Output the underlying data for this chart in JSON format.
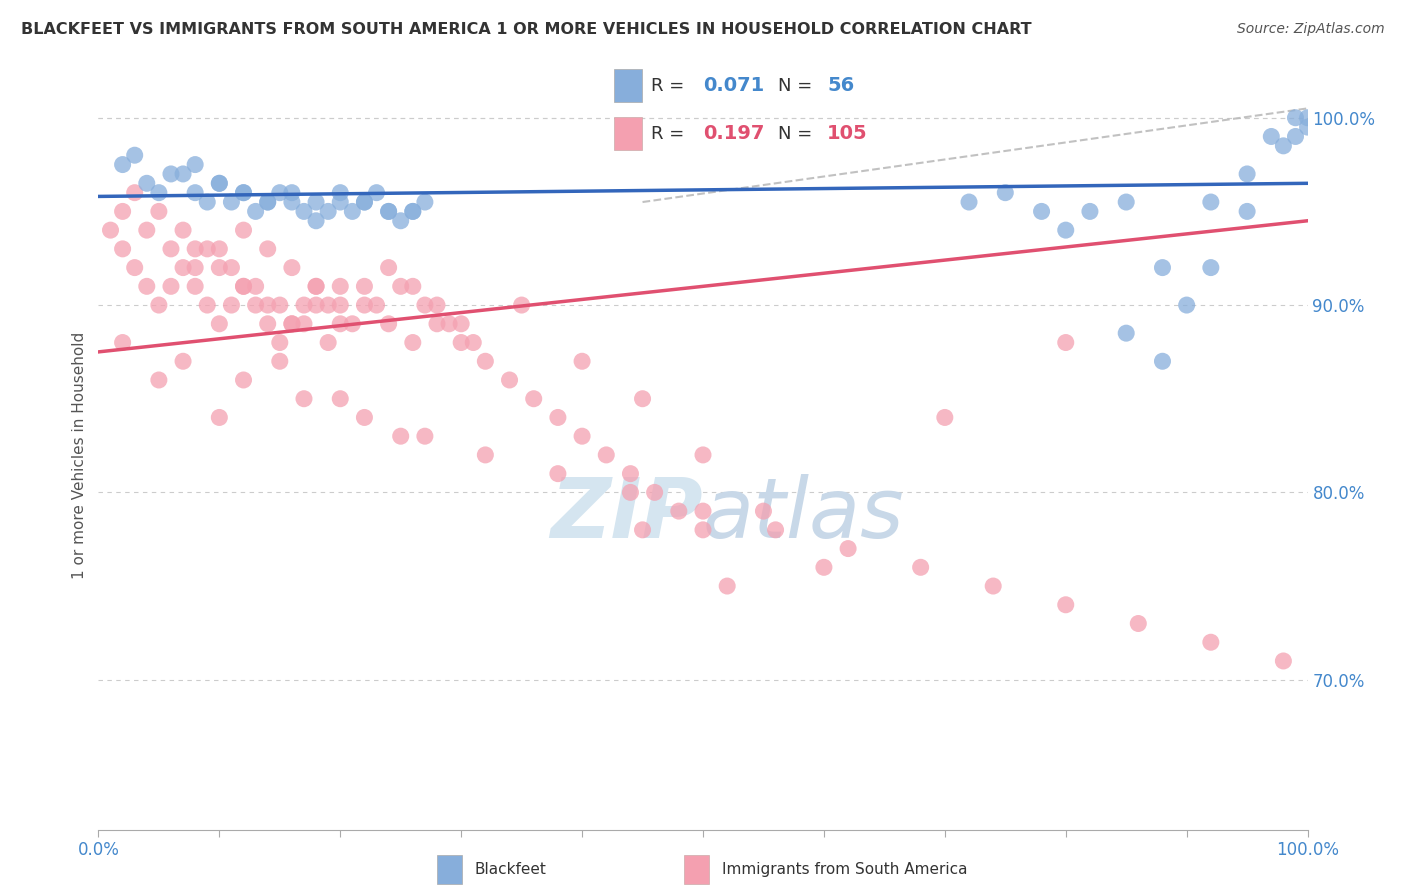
{
  "title": "BLACKFEET VS IMMIGRANTS FROM SOUTH AMERICA 1 OR MORE VEHICLES IN HOUSEHOLD CORRELATION CHART",
  "source": "Source: ZipAtlas.com",
  "ylabel": "1 or more Vehicles in Household",
  "legend_blue_label": "Blackfeet",
  "legend_pink_label": "Immigrants from South America",
  "R_blue": 0.071,
  "N_blue": 56,
  "R_pink": 0.197,
  "N_pink": 105,
  "blue_color": "#87AEDB",
  "pink_color": "#F4A0B0",
  "blue_line_color": "#3366BB",
  "pink_line_color": "#E05070",
  "dash_color": "#BBBBBB",
  "watermark_color": "#D5E5F0",
  "background_color": "#FFFFFF",
  "grid_color": "#CCCCCC",
  "title_color": "#333333",
  "axis_label_color": "#4488CC",
  "x_min": 0,
  "x_max": 100,
  "y_min": 62,
  "y_max": 102,
  "blue_x": [
    2,
    4,
    5,
    7,
    8,
    9,
    10,
    11,
    12,
    13,
    14,
    15,
    16,
    17,
    18,
    19,
    20,
    21,
    22,
    23,
    24,
    25,
    26,
    27,
    3,
    6,
    8,
    10,
    12,
    14,
    16,
    18,
    20,
    22,
    24,
    26,
    72,
    75,
    78,
    80,
    82,
    85,
    88,
    90,
    92,
    95,
    97,
    99,
    100,
    85,
    88,
    92,
    95,
    98,
    100,
    99
  ],
  "blue_y": [
    97.5,
    96.5,
    96,
    97,
    96,
    95.5,
    96.5,
    95.5,
    96,
    95,
    95.5,
    96,
    95.5,
    95,
    94.5,
    95,
    95.5,
    95,
    95.5,
    96,
    95,
    94.5,
    95,
    95.5,
    98,
    97,
    97.5,
    96.5,
    96,
    95.5,
    96,
    95.5,
    96,
    95.5,
    95,
    95,
    95.5,
    96,
    95,
    94,
    95,
    95.5,
    92,
    90,
    92,
    97,
    99,
    100,
    100,
    88.5,
    87,
    95.5,
    95,
    98.5,
    99.5,
    99
  ],
  "pink_x": [
    1,
    2,
    3,
    4,
    5,
    6,
    7,
    8,
    9,
    10,
    11,
    12,
    13,
    14,
    15,
    16,
    17,
    18,
    19,
    20,
    2,
    4,
    6,
    8,
    10,
    12,
    14,
    16,
    18,
    20,
    22,
    24,
    26,
    28,
    30,
    3,
    5,
    7,
    9,
    11,
    13,
    15,
    17,
    19,
    21,
    23,
    25,
    27,
    29,
    31,
    8,
    10,
    12,
    14,
    16,
    18,
    20,
    22,
    24,
    26,
    28,
    30,
    32,
    34,
    36,
    38,
    40,
    42,
    44,
    46,
    48,
    50,
    35,
    40,
    45,
    50,
    55,
    60,
    70,
    80,
    15,
    20,
    25,
    10,
    5,
    2,
    7,
    12,
    17,
    22,
    27,
    32,
    38,
    44,
    50,
    56,
    62,
    68,
    74,
    80,
    86,
    92,
    98,
    45,
    52
  ],
  "pink_y": [
    94,
    93,
    92,
    91,
    90,
    91,
    92,
    91,
    90,
    89,
    90,
    91,
    90,
    89,
    88,
    89,
    90,
    91,
    90,
    89,
    95,
    94,
    93,
    92,
    93,
    94,
    93,
    92,
    91,
    90,
    91,
    92,
    91,
    90,
    89,
    96,
    95,
    94,
    93,
    92,
    91,
    90,
    89,
    88,
    89,
    90,
    91,
    90,
    89,
    88,
    93,
    92,
    91,
    90,
    89,
    90,
    91,
    90,
    89,
    88,
    89,
    88,
    87,
    86,
    85,
    84,
    83,
    82,
    81,
    80,
    79,
    78,
    90,
    87,
    85,
    82,
    79,
    76,
    84,
    88,
    87,
    85,
    83,
    84,
    86,
    88,
    87,
    86,
    85,
    84,
    83,
    82,
    81,
    80,
    79,
    78,
    77,
    76,
    75,
    74,
    73,
    72,
    71,
    78,
    75
  ],
  "blue_line_x0": 0,
  "blue_line_x1": 100,
  "blue_line_y0": 95.8,
  "blue_line_y1": 96.5,
  "pink_line_x0": 0,
  "pink_line_x1": 100,
  "pink_line_y0": 87.5,
  "pink_line_y1": 94.5,
  "dash_line_x0": 45,
  "dash_line_x1": 100,
  "dash_line_y0": 95.5,
  "dash_line_y1": 100.5,
  "yticks": [
    70,
    80,
    90,
    100
  ],
  "ytick_labels": [
    "70.0%",
    "80.0%",
    "90.0%",
    "100.0%"
  ]
}
